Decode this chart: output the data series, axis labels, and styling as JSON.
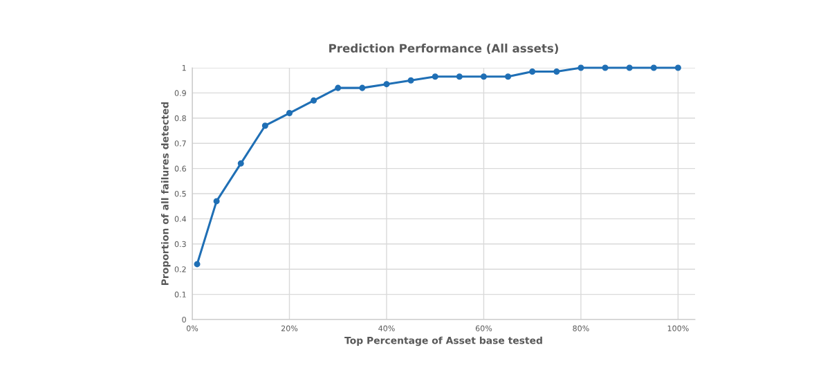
{
  "chart_data": {
    "type": "line",
    "title": "Prediction Performance (All assets)",
    "xlabel": "Top Percentage of Asset base tested",
    "ylabel": "Proportion of all failures detected",
    "x": [
      1,
      5,
      10,
      15,
      20,
      25,
      30,
      35,
      40,
      45,
      50,
      55,
      60,
      65,
      70,
      75,
      80,
      85,
      90,
      95,
      100
    ],
    "series": [
      {
        "color": "#1f6fb5",
        "values": [
          0.22,
          0.47,
          0.62,
          0.77,
          0.82,
          0.87,
          0.92,
          0.92,
          0.935,
          0.95,
          0.965,
          0.965,
          0.965,
          0.965,
          0.985,
          0.985,
          1,
          1,
          1,
          1,
          1
        ]
      }
    ],
    "xlim": [
      0,
      103.5
    ],
    "ylim": [
      0,
      1
    ],
    "xticks": [
      {
        "value": 0,
        "label": "0%"
      },
      {
        "value": 20,
        "label": "20%"
      },
      {
        "value": 40,
        "label": "40%"
      },
      {
        "value": 60,
        "label": "60%"
      },
      {
        "value": 80,
        "label": "80%"
      },
      {
        "value": 100,
        "label": "100%"
      }
    ],
    "yticks": [
      0,
      0.1,
      0.2,
      0.3,
      0.4,
      0.5,
      0.6,
      0.7,
      0.8,
      0.9,
      1
    ],
    "grid": true,
    "marker": "circle",
    "line_style": "solid",
    "legend": false
  }
}
